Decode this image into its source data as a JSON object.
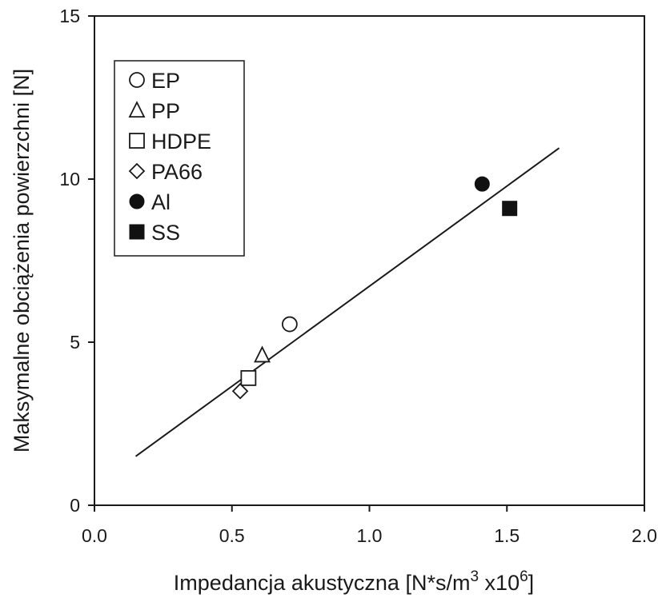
{
  "chart_data": {
    "type": "scatter",
    "xlabel": "Impedancja akustyczna [N*s/m",
    "xlabel_sup1": "3",
    "xlabel_mid": " x10",
    "xlabel_sup2": "6",
    "xlabel_end": "]",
    "ylabel": "Maksymalne obciążenia powierzchni [N]",
    "xlim": [
      0.0,
      2.0
    ],
    "ylim": [
      0,
      15
    ],
    "x_ticks": [
      "0.0",
      "0.5",
      "1.0",
      "1.5",
      "2.0"
    ],
    "y_ticks": [
      "0",
      "5",
      "10",
      "15"
    ],
    "grid": false,
    "legend_position": "top-left",
    "series": [
      {
        "name": "EP",
        "marker": "circle-open",
        "x": [
          0.71
        ],
        "y": [
          5.55
        ]
      },
      {
        "name": "PP",
        "marker": "triangle-open",
        "x": [
          0.61
        ],
        "y": [
          4.6
        ]
      },
      {
        "name": "HDPE",
        "marker": "square-open",
        "x": [
          0.56
        ],
        "y": [
          3.9
        ]
      },
      {
        "name": "PA66",
        "marker": "diamond-open",
        "x": [
          0.53
        ],
        "y": [
          3.5
        ]
      },
      {
        "name": "Al",
        "marker": "circle-filled",
        "x": [
          1.41
        ],
        "y": [
          9.85
        ]
      },
      {
        "name": "SS",
        "marker": "square-filled",
        "x": [
          1.51
        ],
        "y": [
          9.1
        ]
      }
    ],
    "fit_line": {
      "x": [
        0.15,
        1.69
      ],
      "y": [
        1.5,
        10.95
      ]
    }
  }
}
